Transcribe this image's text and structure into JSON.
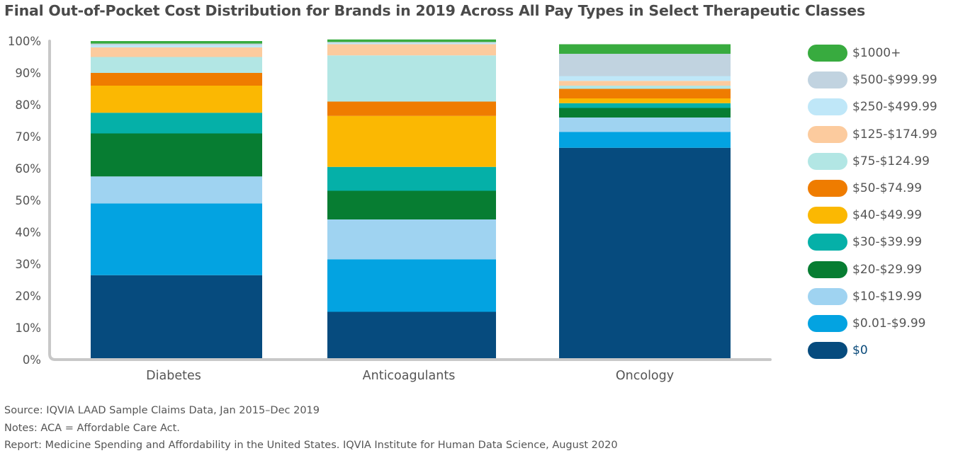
{
  "chart_data": {
    "type": "bar",
    "stacked": true,
    "title": "Final Out-of-Pocket Cost Distribution for Brands in 2019 Across All Pay Types in Select Therapeutic Classes",
    "xlabel": "",
    "ylabel": "",
    "ylim": [
      0,
      100
    ],
    "y_ticks": [
      "0%",
      "10%",
      "20%",
      "30%",
      "40%",
      "50%",
      "60%",
      "70%",
      "80%",
      "90%",
      "100%"
    ],
    "categories": [
      "Diabetes",
      "Anticoagulants",
      "Oncology"
    ],
    "legend_position": "right",
    "series": [
      {
        "name": "$0",
        "color": "#064b7e",
        "values": [
          26.5,
          15.0,
          66.5
        ]
      },
      {
        "name": "$0.01-$9.99",
        "color": "#03a3e1",
        "values": [
          22.5,
          16.5,
          5.0
        ]
      },
      {
        "name": "$10-$19.99",
        "color": "#9fd3f1",
        "values": [
          8.5,
          12.5,
          4.5
        ]
      },
      {
        "name": "$20-$29.99",
        "color": "#077d32",
        "values": [
          13.5,
          9.0,
          3.0
        ]
      },
      {
        "name": "$30-$39.99",
        "color": "#05b0a8",
        "values": [
          6.5,
          7.5,
          1.5
        ]
      },
      {
        "name": "$40-$49.99",
        "color": "#fbb802",
        "values": [
          8.5,
          16.0,
          1.5
        ]
      },
      {
        "name": "$50-$74.99",
        "color": "#ef7c00",
        "values": [
          4.0,
          4.5,
          3.0
        ]
      },
      {
        "name": "$75-$124.99",
        "color": "#b2e6e4",
        "values": [
          5.0,
          14.5,
          1.0
        ]
      },
      {
        "name": "$125-$174.99",
        "color": "#fccb9e",
        "values": [
          3.0,
          3.5,
          1.5
        ]
      },
      {
        "name": "$250-$499.99",
        "color": "#bfe7f8",
        "values": [
          0.7,
          0.4,
          1.5
        ]
      },
      {
        "name": "$500-$999.99",
        "color": "#c1d3e0",
        "values": [
          0.5,
          0.3,
          7.0
        ]
      },
      {
        "name": "$1000+",
        "color": "#38ab3f",
        "values": [
          0.8,
          0.8,
          3.0
        ]
      }
    ]
  },
  "legend": {
    "items": [
      {
        "label": "$1000+",
        "color": "#38ab3f"
      },
      {
        "label": "$500-$999.99",
        "color": "#c1d3e0"
      },
      {
        "label": "$250-$499.99",
        "color": "#bfe7f8"
      },
      {
        "label": "$125-$174.99",
        "color": "#fccb9e"
      },
      {
        "label": "$75-$124.99",
        "color": "#b2e6e4"
      },
      {
        "label": "$50-$74.99",
        "color": "#ef7c00"
      },
      {
        "label": "$40-$49.99",
        "color": "#fbb802"
      },
      {
        "label": "$30-$39.99",
        "color": "#05b0a8"
      },
      {
        "label": "$20-$29.99",
        "color": "#077d32"
      },
      {
        "label": "$10-$19.99",
        "color": "#9fd3f1"
      },
      {
        "label": "$0.01-$9.99",
        "color": "#03a3e1"
      },
      {
        "label": "$0",
        "color": "#064b7e"
      }
    ]
  },
  "footer": {
    "source": "Source: IQVIA LAAD Sample Claims Data, Jan 2015–Dec 2019",
    "notes": "Notes: ACA = Affordable Care Act.",
    "report": "Report: Medicine Spending and Affordability in the United States. IQVIA Institute for Human Data Science, August 2020"
  },
  "colors": {
    "axis": "#c8c8c8",
    "text": "#555555"
  }
}
